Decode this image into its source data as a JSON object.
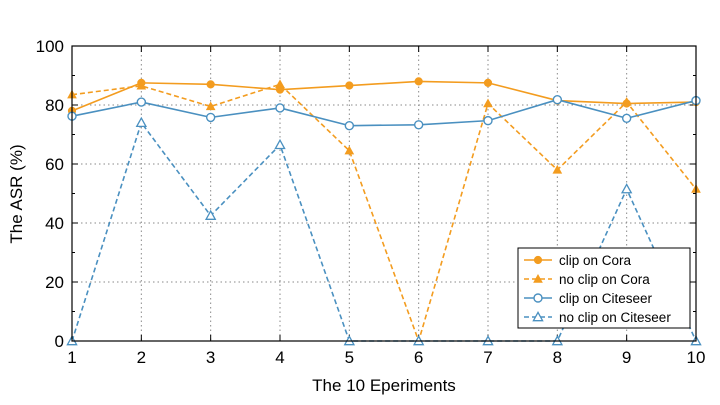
{
  "chart_data": {
    "type": "line",
    "xlabel": "The 10 Eperiments",
    "ylabel": "The ASR (%)",
    "x": [
      1,
      2,
      3,
      4,
      5,
      6,
      7,
      8,
      9,
      10
    ],
    "xlim": [
      1,
      10
    ],
    "ylim": [
      0,
      100
    ],
    "yticks": [
      0,
      20,
      40,
      60,
      80,
      100
    ],
    "grid": true,
    "legend_position": "bottom-right",
    "series": [
      {
        "name": "clip on Cora",
        "color": "#f39c1f",
        "line": "solid",
        "marker": "filled-circle",
        "values": [
          78,
          87.5,
          87,
          85.2,
          86.6,
          88,
          87.5,
          81.5,
          80.5,
          81
        ]
      },
      {
        "name": "no clip on Cora",
        "color": "#f39c1f",
        "line": "dashed",
        "marker": "filled-triangle",
        "values": [
          83.5,
          86.5,
          79.5,
          87,
          64.5,
          0,
          80.5,
          58,
          81,
          51.5
        ]
      },
      {
        "name": "clip on Citeseer",
        "color": "#4a90c0",
        "line": "solid",
        "marker": "open-circle",
        "values": [
          76.2,
          81,
          75.8,
          79,
          73,
          73.3,
          74.7,
          81.8,
          75.5,
          81.5
        ]
      },
      {
        "name": "no clip on Citeseer",
        "color": "#4a90c0",
        "line": "dashed",
        "marker": "open-triangle",
        "values": [
          0,
          74,
          42.5,
          66.5,
          0,
          0,
          0,
          0,
          51.5,
          0
        ]
      }
    ]
  }
}
